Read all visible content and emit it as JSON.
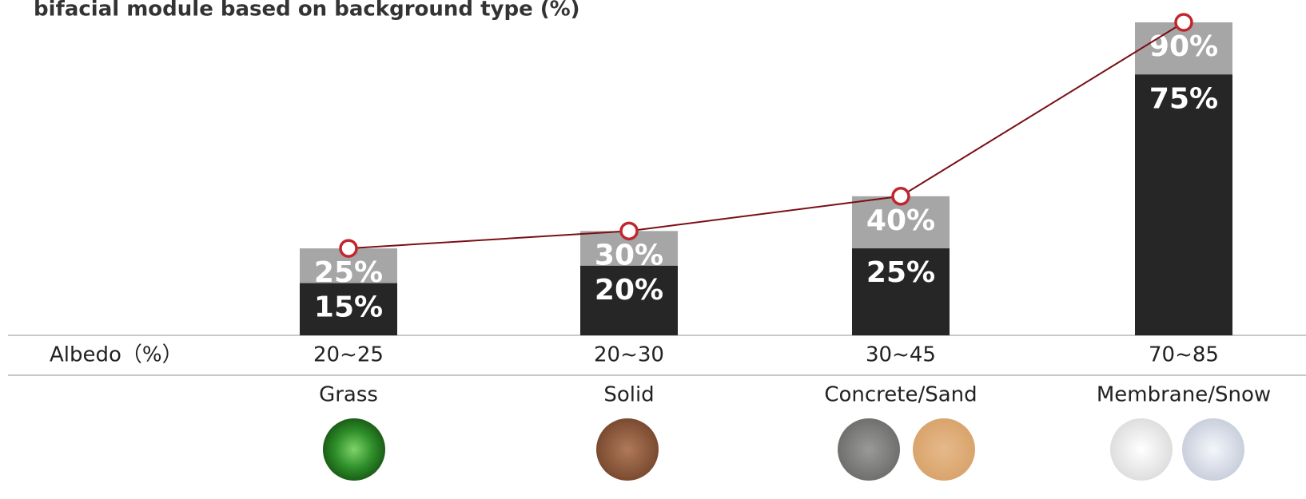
{
  "chart_data": {
    "type": "bar",
    "title": "bifacial module based on background type (%)",
    "row_label": "Albedo（%）",
    "categories": [
      "20~25",
      "20~30",
      "30~45",
      "70~85"
    ],
    "surfaces": [
      "Grass",
      "Solid",
      "Concrete/Sand",
      "Membrane/Snow"
    ],
    "series": [
      {
        "color": "#262626",
        "values": [
          15,
          20,
          25,
          75
        ],
        "value_labels": [
          "15%",
          "20%",
          "25%",
          "75%"
        ]
      },
      {
        "color": "#a6a6a6",
        "line_color": "#7b0f14",
        "marker_color": "#c0272d",
        "values": [
          25,
          30,
          40,
          90
        ],
        "value_labels": [
          "25%",
          "30%",
          "40%",
          "90%"
        ]
      }
    ],
    "ylim": [
      0,
      90
    ]
  }
}
